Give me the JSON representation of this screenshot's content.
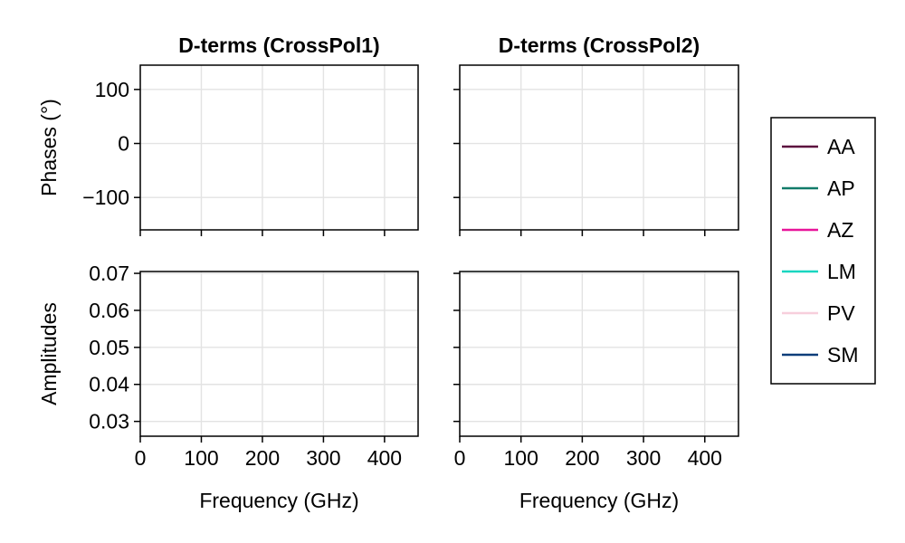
{
  "chart_data": {
    "type": "line",
    "panels": [
      {
        "id": "phase-crosspol1",
        "title": "D-terms (CrossPol1)",
        "ylabel": "Phases (°)",
        "xlabel": "",
        "xlim": [
          0,
          455
        ],
        "ylim": [
          -160,
          145
        ],
        "xticks": [
          0,
          100,
          200,
          300,
          400
        ],
        "xtick_labels": [
          "",
          "",
          "",
          "",
          ""
        ],
        "yticks": [
          100,
          0,
          -100
        ],
        "ytick_labels": [
          "100",
          "0",
          "−100"
        ],
        "series": []
      },
      {
        "id": "phase-crosspol2",
        "title": "D-terms (CrossPol2)",
        "ylabel": "",
        "xlabel": "",
        "xlim": [
          0,
          455
        ],
        "ylim": [
          -160,
          145
        ],
        "xticks": [
          0,
          100,
          200,
          300,
          400
        ],
        "xtick_labels": [
          "",
          "",
          "",
          "",
          ""
        ],
        "yticks": [
          100,
          0,
          -100
        ],
        "ytick_labels": [
          "",
          "",
          ""
        ],
        "series": []
      },
      {
        "id": "amp-crosspol1",
        "title": "",
        "ylabel": "Amplitudes",
        "xlabel": "Frequency (GHz)",
        "xlim": [
          0,
          455
        ],
        "ylim": [
          0.026,
          0.0705
        ],
        "xticks": [
          0,
          100,
          200,
          300,
          400
        ],
        "xtick_labels": [
          "0",
          "100",
          "200",
          "300",
          "400"
        ],
        "yticks": [
          0.07,
          0.06,
          0.05,
          0.04,
          0.03
        ],
        "ytick_labels": [
          "0.07",
          "0.06",
          "0.05",
          "0.04",
          "0.03"
        ],
        "series": []
      },
      {
        "id": "amp-crosspol2",
        "title": "",
        "ylabel": "",
        "xlabel": "Frequency (GHz)",
        "xlim": [
          0,
          455
        ],
        "ylim": [
          0.026,
          0.0705
        ],
        "xticks": [
          0,
          100,
          200,
          300,
          400
        ],
        "xtick_labels": [
          "0",
          "100",
          "200",
          "300",
          "400"
        ],
        "yticks": [
          0.07,
          0.06,
          0.05,
          0.04,
          0.03
        ],
        "ytick_labels": [
          "",
          "",
          "",
          "",
          ""
        ],
        "series": []
      }
    ],
    "grid": true,
    "legend_position": "right",
    "legend": [
      {
        "label": "AA",
        "color": "#5c0c3e"
      },
      {
        "label": "AP",
        "color": "#127c6a"
      },
      {
        "label": "AZ",
        "color": "#e8159a"
      },
      {
        "label": "LM",
        "color": "#19d6c0"
      },
      {
        "label": "PV",
        "color": "#f7cfdc"
      },
      {
        "label": "SM",
        "color": "#0d3d7a"
      }
    ]
  }
}
